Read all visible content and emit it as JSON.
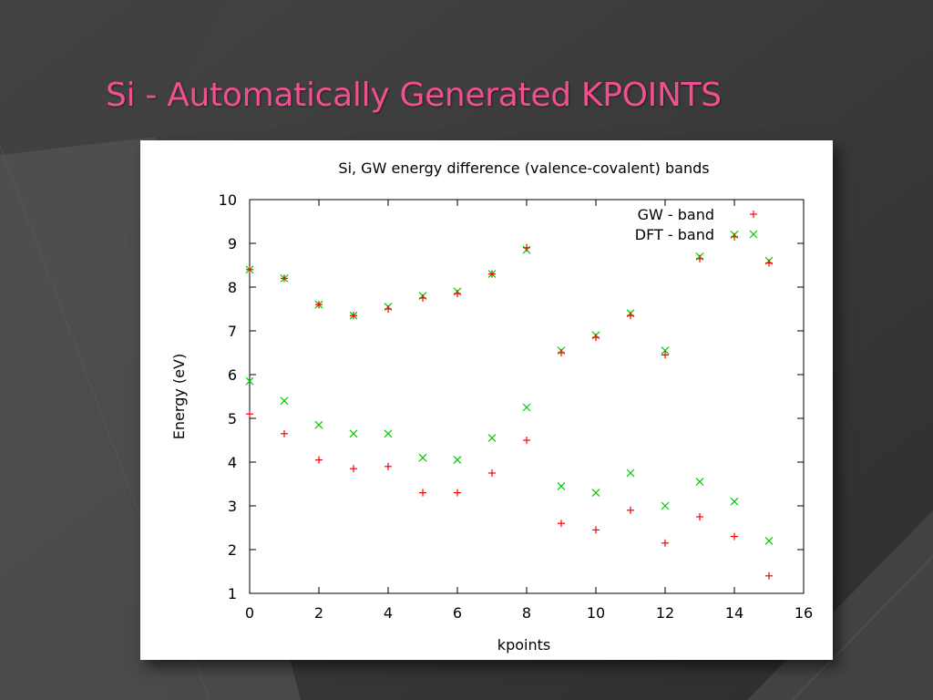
{
  "slide": {
    "title": "Si - Automatically Generated KPOINTS",
    "title_color": "#f0508f",
    "background_color": "#3a3a3a"
  },
  "chart_data": {
    "type": "scatter",
    "title": "Si, GW energy difference (valence-covalent) bands",
    "xlabel": "kpoints",
    "ylabel": "Energy (eV)",
    "xlim": [
      0,
      16
    ],
    "ylim": [
      1,
      10
    ],
    "xticks": [
      0,
      2,
      4,
      6,
      8,
      10,
      12,
      14,
      16
    ],
    "yticks": [
      1,
      2,
      3,
      4,
      5,
      6,
      7,
      8,
      9,
      10
    ],
    "grid": false,
    "legend_position": "top-right",
    "series": [
      {
        "name": "GW - band",
        "marker": "plus",
        "color": "#ff0000",
        "points": [
          [
            0,
            8.4
          ],
          [
            1,
            8.2
          ],
          [
            2,
            7.6
          ],
          [
            3,
            7.35
          ],
          [
            4,
            7.5
          ],
          [
            5,
            7.75
          ],
          [
            6,
            7.85
          ],
          [
            7,
            8.3
          ],
          [
            8,
            8.9
          ],
          [
            9,
            6.5
          ],
          [
            10,
            6.85
          ],
          [
            11,
            7.35
          ],
          [
            12,
            6.45
          ],
          [
            13,
            8.65
          ],
          [
            14,
            9.15
          ],
          [
            15,
            8.55
          ],
          [
            0,
            5.1
          ],
          [
            1,
            4.65
          ],
          [
            2,
            4.05
          ],
          [
            3,
            3.85
          ],
          [
            4,
            3.9
          ],
          [
            5,
            3.3
          ],
          [
            6,
            3.3
          ],
          [
            7,
            3.75
          ],
          [
            8,
            4.5
          ],
          [
            9,
            2.6
          ],
          [
            10,
            2.45
          ],
          [
            11,
            2.9
          ],
          [
            12,
            2.15
          ],
          [
            13,
            2.75
          ],
          [
            14,
            2.3
          ],
          [
            15,
            1.4
          ]
        ]
      },
      {
        "name": "DFT - band",
        "marker": "cross",
        "color": "#00cc00",
        "points": [
          [
            0,
            8.4
          ],
          [
            1,
            8.2
          ],
          [
            2,
            7.6
          ],
          [
            3,
            7.35
          ],
          [
            4,
            7.55
          ],
          [
            5,
            7.8
          ],
          [
            6,
            7.9
          ],
          [
            7,
            8.3
          ],
          [
            8,
            8.85
          ],
          [
            9,
            6.55
          ],
          [
            10,
            6.9
          ],
          [
            11,
            7.4
          ],
          [
            12,
            6.55
          ],
          [
            13,
            8.7
          ],
          [
            14,
            9.2
          ],
          [
            15,
            8.6
          ],
          [
            0,
            5.85
          ],
          [
            1,
            5.4
          ],
          [
            2,
            4.85
          ],
          [
            3,
            4.65
          ],
          [
            4,
            4.65
          ],
          [
            5,
            4.1
          ],
          [
            6,
            4.05
          ],
          [
            7,
            4.55
          ],
          [
            8,
            5.25
          ],
          [
            9,
            3.45
          ],
          [
            10,
            3.3
          ],
          [
            11,
            3.75
          ],
          [
            12,
            3.0
          ],
          [
            13,
            3.55
          ],
          [
            14,
            3.1
          ],
          [
            15,
            2.2
          ]
        ]
      }
    ]
  }
}
